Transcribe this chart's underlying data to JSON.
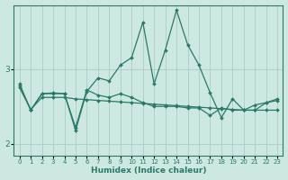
{
  "xlabel": "Humidex (Indice chaleur)",
  "background_color": "#cce8e0",
  "grid_color": "#aacccc",
  "line_color": "#2a7a6a",
  "xlim": [
    -0.5,
    23.5
  ],
  "ylim": [
    1.85,
    3.85
  ],
  "yticks": [
    2,
    3
  ],
  "xticks": [
    0,
    1,
    2,
    3,
    4,
    5,
    6,
    7,
    8,
    9,
    10,
    11,
    12,
    13,
    14,
    15,
    16,
    17,
    18,
    19,
    20,
    21,
    22,
    23
  ],
  "series1_x": [
    0,
    1,
    2,
    3,
    4,
    5,
    6,
    7,
    8,
    9,
    10,
    11,
    12,
    13,
    14,
    15,
    16,
    17,
    18,
    19,
    20,
    21,
    22,
    23
  ],
  "series1_y": [
    2.8,
    2.45,
    2.67,
    2.68,
    2.67,
    2.18,
    2.7,
    2.88,
    2.84,
    3.05,
    3.15,
    3.62,
    2.8,
    3.25,
    3.78,
    3.32,
    3.05,
    2.68,
    2.35,
    2.6,
    2.45,
    2.45,
    2.55,
    2.6
  ],
  "series2_x": [
    0,
    1,
    2,
    3,
    4,
    5,
    6,
    7,
    8,
    9,
    10,
    11,
    12,
    13,
    14,
    15,
    16,
    17,
    18,
    19,
    20,
    21,
    22,
    23
  ],
  "series2_y": [
    2.75,
    2.46,
    2.62,
    2.62,
    2.62,
    2.6,
    2.59,
    2.58,
    2.57,
    2.56,
    2.55,
    2.54,
    2.53,
    2.52,
    2.51,
    2.5,
    2.49,
    2.48,
    2.47,
    2.46,
    2.45,
    2.45,
    2.45,
    2.45
  ],
  "series3_x": [
    0,
    1,
    2,
    3,
    4,
    5,
    6,
    7,
    8,
    9,
    10,
    11,
    12,
    13,
    14,
    15,
    16,
    17,
    18,
    19,
    20,
    21,
    22,
    23
  ],
  "series3_y": [
    2.78,
    2.45,
    2.67,
    2.67,
    2.67,
    2.22,
    2.72,
    2.65,
    2.62,
    2.67,
    2.62,
    2.55,
    2.5,
    2.5,
    2.5,
    2.48,
    2.48,
    2.38,
    2.48,
    2.45,
    2.45,
    2.52,
    2.55,
    2.58
  ]
}
